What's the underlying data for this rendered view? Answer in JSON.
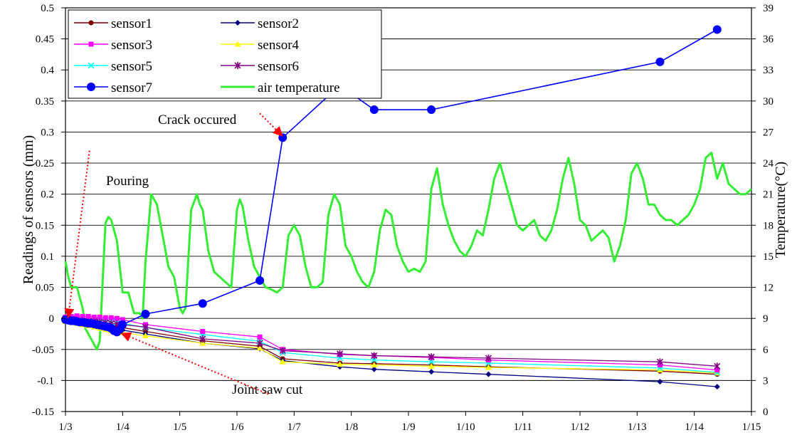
{
  "chart_data": {
    "type": "line",
    "title": "",
    "xlabel": "",
    "ylabel": "Readings of sensors (mm)",
    "y2label": "Temperature(°C)",
    "ylim": [
      -0.15,
      0.5
    ],
    "y2lim": [
      0,
      39
    ],
    "xlim": [
      0,
      12
    ],
    "x_ticks": [
      0,
      1,
      2,
      3,
      4,
      5,
      6,
      7,
      8,
      9,
      10,
      11,
      12
    ],
    "x_tick_labels": [
      "1/3",
      "1/4",
      "1/5",
      "1/6",
      "1/7",
      "1/8",
      "1/9",
      "1/10",
      "1/11",
      "1/12",
      "1/13",
      "1/14",
      "1/15"
    ],
    "y_ticks": [
      -0.15,
      -0.1,
      -0.05,
      0,
      0.05,
      0.1,
      0.15,
      0.2,
      0.25,
      0.3,
      0.35,
      0.4,
      0.45,
      0.5
    ],
    "y_tick_labels": [
      "-0.15",
      "-0.1",
      "-0.05",
      "0",
      "0.05",
      "0.1",
      "0.15",
      "0.2",
      "0.25",
      "0.3",
      "0.35",
      "0.4",
      "0.45",
      "0.5"
    ],
    "y2_ticks": [
      0,
      3,
      6,
      9,
      12,
      15,
      18,
      21,
      24,
      27,
      30,
      33,
      36,
      39
    ],
    "y2_tick_labels": [
      "0",
      "3",
      "6",
      "9",
      "12",
      "15",
      "18",
      "21",
      "24",
      "27",
      "30",
      "33",
      "36",
      "39"
    ],
    "grid": "horizontal",
    "legend_position": "top-left",
    "series": [
      {
        "name": "sensor1",
        "color": "#800000",
        "marker": "circle",
        "axis": "left",
        "x": [
          0,
          0.1,
          0.2,
          0.3,
          0.4,
          0.5,
          0.6,
          0.7,
          0.8,
          0.9,
          1.0,
          1.4,
          2.4,
          3.4,
          3.8,
          4.8,
          5.4,
          6.4,
          7.4,
          10.4,
          11.4
        ],
        "y": [
          -0.002,
          -0.003,
          -0.004,
          -0.005,
          -0.006,
          -0.007,
          -0.008,
          -0.009,
          -0.011,
          -0.013,
          -0.015,
          -0.021,
          -0.036,
          -0.045,
          -0.065,
          -0.072,
          -0.073,
          -0.075,
          -0.078,
          -0.085,
          -0.09
        ]
      },
      {
        "name": "sensor2",
        "color": "#000080",
        "marker": "diamond",
        "axis": "left",
        "x": [
          0,
          0.1,
          0.2,
          0.3,
          0.4,
          0.5,
          0.6,
          0.7,
          0.8,
          0.9,
          1.0,
          1.4,
          2.4,
          3.4,
          3.8,
          4.8,
          5.4,
          6.4,
          7.4,
          10.4,
          11.4
        ],
        "y": [
          -0.003,
          -0.004,
          -0.006,
          -0.007,
          -0.009,
          -0.01,
          -0.011,
          -0.013,
          -0.015,
          -0.017,
          -0.019,
          -0.025,
          -0.04,
          -0.049,
          -0.068,
          -0.078,
          -0.082,
          -0.086,
          -0.09,
          -0.102,
          -0.11
        ]
      },
      {
        "name": "sensor3",
        "color": "#ff00ff",
        "marker": "square",
        "axis": "left",
        "x": [
          0,
          0.1,
          0.2,
          0.3,
          0.4,
          0.5,
          0.6,
          0.7,
          0.8,
          0.9,
          1.0,
          1.4,
          2.4,
          3.4,
          3.8,
          4.8,
          5.4,
          6.4,
          7.4,
          10.4,
          11.4
        ],
        "y": [
          0.002,
          0.003,
          0.004,
          0.003,
          0.003,
          0.002,
          0.002,
          0.001,
          0.001,
          0.0,
          -0.002,
          -0.01,
          -0.021,
          -0.03,
          -0.05,
          -0.058,
          -0.06,
          -0.063,
          -0.067,
          -0.075,
          -0.083
        ]
      },
      {
        "name": "sensor4",
        "color": "#ffff00",
        "marker": "triangle",
        "axis": "left",
        "x": [
          0,
          0.1,
          0.2,
          0.3,
          0.4,
          0.5,
          0.6,
          0.7,
          0.8,
          0.9,
          1.0,
          1.4,
          2.4,
          3.4,
          3.8,
          4.8,
          5.4,
          6.4,
          7.4,
          10.4,
          11.4
        ],
        "y": [
          -0.005,
          -0.006,
          -0.008,
          -0.01,
          -0.012,
          -0.014,
          -0.016,
          -0.018,
          -0.02,
          -0.021,
          -0.023,
          -0.028,
          -0.04,
          -0.048,
          -0.07,
          -0.074,
          -0.075,
          -0.077,
          -0.079,
          -0.083,
          -0.088
        ]
      },
      {
        "name": "sensor5",
        "color": "#00ffff",
        "marker": "x",
        "axis": "left",
        "x": [
          0,
          0.1,
          0.2,
          0.3,
          0.4,
          0.5,
          0.6,
          0.7,
          0.8,
          0.9,
          1.0,
          1.4,
          2.4,
          3.4,
          3.8,
          4.8,
          5.4,
          6.4,
          7.4,
          10.4,
          11.4
        ],
        "y": [
          0.001,
          0.001,
          0.0,
          0.0,
          -0.001,
          -0.002,
          -0.003,
          -0.004,
          -0.005,
          -0.006,
          -0.008,
          -0.015,
          -0.026,
          -0.037,
          -0.055,
          -0.064,
          -0.067,
          -0.07,
          -0.072,
          -0.08,
          -0.087
        ]
      },
      {
        "name": "sensor6",
        "color": "#800080",
        "marker": "star",
        "axis": "left",
        "x": [
          0,
          0.1,
          0.2,
          0.3,
          0.4,
          0.5,
          0.6,
          0.7,
          0.8,
          0.9,
          1.0,
          1.4,
          2.4,
          3.4,
          3.8,
          4.8,
          5.4,
          6.4,
          7.4,
          10.4,
          11.4
        ],
        "y": [
          -0.001,
          -0.002,
          -0.003,
          -0.004,
          -0.005,
          -0.005,
          -0.006,
          -0.007,
          -0.008,
          -0.009,
          -0.01,
          -0.014,
          -0.033,
          -0.04,
          -0.052,
          -0.057,
          -0.06,
          -0.062,
          -0.064,
          -0.07,
          -0.077
        ]
      },
      {
        "name": "sensor7",
        "color": "#0000ff",
        "marker": "bigcircle",
        "axis": "left",
        "x": [
          0,
          0.05,
          0.1,
          0.15,
          0.2,
          0.25,
          0.3,
          0.35,
          0.4,
          0.45,
          0.5,
          0.55,
          0.6,
          0.65,
          0.7,
          0.75,
          0.8,
          0.85,
          0.9,
          0.95,
          1.0,
          1.4,
          2.4,
          3.4,
          3.8,
          4.8,
          5.4,
          6.4,
          10.4,
          11.4
        ],
        "y": [
          -0.002,
          -0.003,
          -0.004,
          -0.004,
          -0.005,
          -0.006,
          -0.006,
          -0.007,
          -0.008,
          -0.008,
          -0.009,
          -0.01,
          -0.011,
          -0.012,
          -0.013,
          -0.014,
          -0.016,
          -0.02,
          -0.022,
          -0.018,
          -0.01,
          0.007,
          0.024,
          0.061,
          0.291,
          0.375,
          0.336,
          0.336,
          0.413,
          0.465
        ]
      },
      {
        "name": "air temperature",
        "color": "#33ee33",
        "marker": "none",
        "axis": "right",
        "x": [
          0,
          0.05,
          0.1,
          0.2,
          0.3,
          0.35,
          0.4,
          0.5,
          0.55,
          0.6,
          0.7,
          0.75,
          0.8,
          0.9,
          1.0,
          1.1,
          1.2,
          1.3,
          1.35,
          1.4,
          1.5,
          1.6,
          1.7,
          1.8,
          1.9,
          2.0,
          2.05,
          2.1,
          2.2,
          2.3,
          2.35,
          2.4,
          2.5,
          2.6,
          2.7,
          2.8,
          2.9,
          3.0,
          3.05,
          3.1,
          3.2,
          3.3,
          3.35,
          3.4,
          3.5,
          3.6,
          3.7,
          3.8,
          3.9,
          4.0,
          4.1,
          4.2,
          4.3,
          4.4,
          4.5,
          4.6,
          4.7,
          4.8,
          4.9,
          5.0,
          5.1,
          5.2,
          5.3,
          5.4,
          5.5,
          5.6,
          5.7,
          5.8,
          5.9,
          6.0,
          6.1,
          6.2,
          6.3,
          6.4,
          6.5,
          6.6,
          6.7,
          6.8,
          6.9,
          7.0,
          7.1,
          7.2,
          7.3,
          7.4,
          7.5,
          7.6,
          7.7,
          7.8,
          7.9,
          8.0,
          8.1,
          8.2,
          8.3,
          8.4,
          8.5,
          8.6,
          8.7,
          8.8,
          8.9,
          9.0,
          9.1,
          9.2,
          9.3,
          9.4,
          9.5,
          9.6,
          9.7,
          9.8,
          9.9,
          10.0,
          10.1,
          10.2,
          10.3,
          10.4,
          10.5,
          10.6,
          10.7,
          10.8,
          10.9,
          11.0,
          11.1,
          11.2,
          11.3,
          11.4,
          11.5,
          11.6,
          11.7,
          11.8,
          11.9,
          12.0
        ],
        "y": [
          14.5,
          13.0,
          12.0,
          12.0,
          10.0,
          8.0,
          7.5,
          6.5,
          6.0,
          6.8,
          18.2,
          18.8,
          18.5,
          16.5,
          11.5,
          11.5,
          9.5,
          9.5,
          9.0,
          14.5,
          21.0,
          20.0,
          17.0,
          14.0,
          13.0,
          10.0,
          9.5,
          10.0,
          19.5,
          21.0,
          20.0,
          19.5,
          15.5,
          13.5,
          13.0,
          12.5,
          12.0,
          19.5,
          20.5,
          19.8,
          16.5,
          14.0,
          13.5,
          13.0,
          12.0,
          11.8,
          11.5,
          12.0,
          17.0,
          18.0,
          17.0,
          14.0,
          12.0,
          12.0,
          12.5,
          19.0,
          21.0,
          20.0,
          16.0,
          15.0,
          13.5,
          12.5,
          12.0,
          13.5,
          17.5,
          19.5,
          19.0,
          16.0,
          14.5,
          13.5,
          13.8,
          13.5,
          14.5,
          21.5,
          23.5,
          20.0,
          18.0,
          16.5,
          15.5,
          15.0,
          16.0,
          17.5,
          17.0,
          19.5,
          22.5,
          24.0,
          22.0,
          20.0,
          18.0,
          17.5,
          18.0,
          18.5,
          17.0,
          16.5,
          17.5,
          19.5,
          22.5,
          24.5,
          22.0,
          18.5,
          18.0,
          16.5,
          17.0,
          17.5,
          16.8,
          14.5,
          16.0,
          18.5,
          23.0,
          24.0,
          22.5,
          20.0,
          20.0,
          19.0,
          18.5,
          18.5,
          18.0,
          18.5,
          19.0,
          20.0,
          21.5,
          24.5,
          25.0,
          22.5,
          24.0,
          22.0,
          21.5,
          21.0,
          21.0,
          21.5
        ]
      }
    ],
    "annotations": [
      {
        "text": "Pouring",
        "x": 0.5,
        "y": 0.29
      },
      {
        "text": "Crack occured",
        "x": 3.6,
        "y": 0.38
      },
      {
        "text": "Joint saw cut",
        "x": 4.2,
        "y": -0.12
      }
    ]
  }
}
